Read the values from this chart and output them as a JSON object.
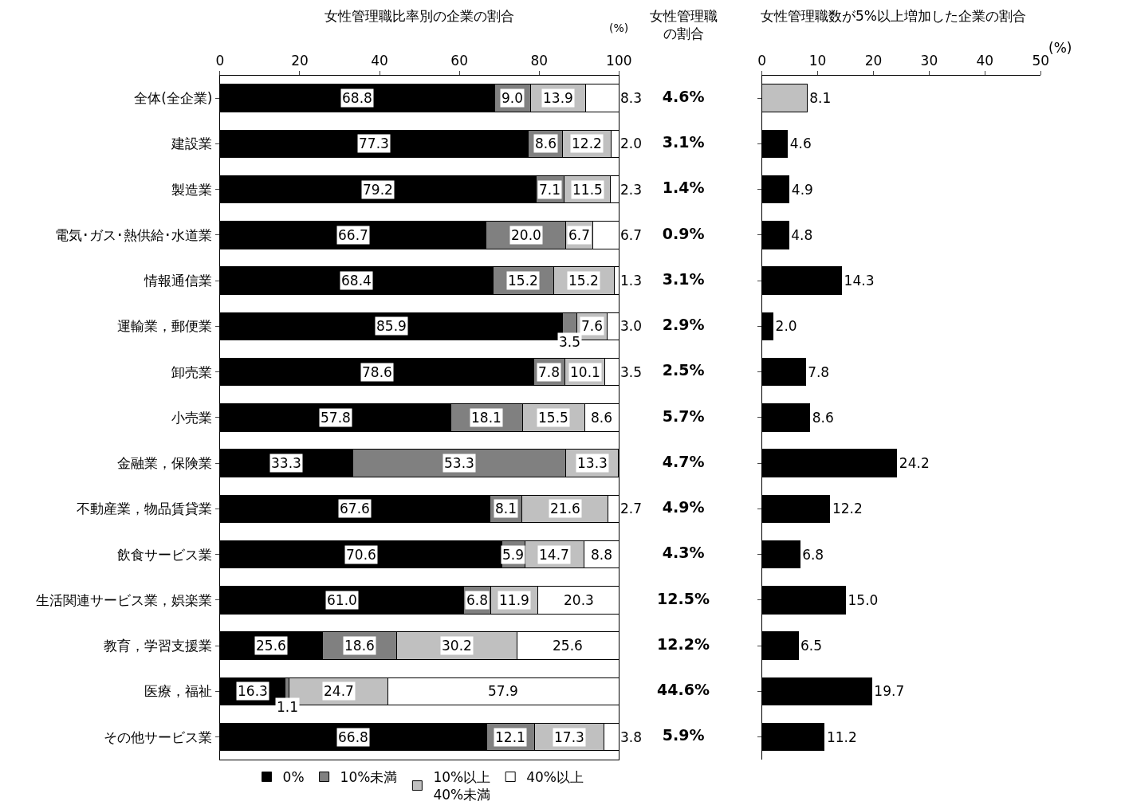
{
  "chart_data": [
    {
      "type": "bar",
      "title": "女性管理職比率別の企業の割合",
      "orientation": "horizontal",
      "stacked": true,
      "xlim": [
        0,
        100
      ],
      "xticks": [
        0,
        20,
        40,
        60,
        80,
        100
      ],
      "xlabel": "(%)",
      "legend": "bottom",
      "categories": [
        "全体(全企業)",
        "建設業",
        "製造業",
        "電気･ガス･熱供給･水道業",
        "情報通信業",
        "運輸業，郵便業",
        "卸売業",
        "小売業",
        "金融業，保険業",
        "不動産業，物品賃貸業",
        "飲食サービス業",
        "生活関連サービス業，娯楽業",
        "教育，学習支援業",
        "医療，福祉",
        "その他サービス業"
      ],
      "series": [
        {
          "name": "0%",
          "color": "#000000",
          "values": [
            68.8,
            77.3,
            79.2,
            66.7,
            68.4,
            85.9,
            78.6,
            57.8,
            33.3,
            67.6,
            70.6,
            61.0,
            25.6,
            16.3,
            66.8
          ],
          "value_labels": [
            "68.8",
            "77.3",
            "79.2",
            "66.7",
            "68.4",
            "85.9",
            "78.6",
            "57.8",
            "33.3",
            "67.6",
            "70.6",
            "61.0",
            "25.6",
            "16.3",
            "66.8"
          ]
        },
        {
          "name": "10%未満",
          "color": "#808080",
          "values": [
            9.0,
            8.6,
            7.1,
            20.0,
            15.2,
            3.5,
            7.8,
            18.1,
            53.3,
            8.1,
            5.9,
            6.8,
            18.6,
            1.1,
            12.1
          ],
          "value_labels": [
            "9.0",
            "8.6",
            "7.1",
            "20.0",
            "15.2",
            "3.5",
            "7.8",
            "18.1",
            "53.3",
            "8.1",
            "5.9",
            "6.8",
            "18.6",
            "1.1",
            "12.1"
          ]
        },
        {
          "name": "10%以上\n40%未満",
          "color": "#c0c0c0",
          "values": [
            13.9,
            12.2,
            11.5,
            6.7,
            15.2,
            7.6,
            10.1,
            15.5,
            13.3,
            21.6,
            14.7,
            11.9,
            30.2,
            24.7,
            17.3
          ],
          "value_labels": [
            "13.9",
            "12.2",
            "11.5",
            "6.7",
            "15.2",
            "7.6",
            "10.1",
            "15.5",
            "13.3",
            "21.6",
            "14.7",
            "11.9",
            "30.2",
            "24.7",
            "17.3"
          ]
        },
        {
          "name": "40%以上",
          "color": "#ffffff",
          "values": [
            8.3,
            2.0,
            2.3,
            6.7,
            1.3,
            3.0,
            3.5,
            8.6,
            0,
            2.7,
            8.8,
            20.3,
            25.6,
            57.9,
            3.8
          ],
          "value_labels": [
            "8.3",
            "2.0",
            "2.3",
            "6.7",
            "1.3",
            "3.0",
            "3.5",
            "8.6",
            null,
            "2.7",
            "8.8",
            "20.3",
            "25.6",
            "57.9",
            "3.8"
          ]
        }
      ]
    },
    {
      "type": "other",
      "title": "女性管理職の割合",
      "value_labels": [
        "4.6%",
        "3.1%",
        "1.4%",
        "0.9%",
        "3.1%",
        "2.9%",
        "2.5%",
        "5.7%",
        "4.7%",
        "4.9%",
        "4.3%",
        "12.5%",
        "12.2%",
        "44.6%",
        "5.9%"
      ]
    },
    {
      "type": "bar",
      "title": "女性管理職数が5%以上増加した企業の割合",
      "orientation": "horizontal",
      "tick_labels": "x",
      "xlim": [
        0,
        50
      ],
      "xticks": [
        0,
        10,
        20,
        30,
        40,
        50
      ],
      "xlabel": "(%)",
      "values": [
        8.1,
        4.6,
        4.9,
        4.8,
        14.3,
        2.0,
        7.8,
        8.6,
        24.2,
        12.2,
        6.8,
        15.0,
        6.5,
        19.7,
        11.2
      ],
      "value_labels": [
        "8.1",
        "4.6",
        "4.9",
        "4.8",
        "14.3",
        "2.0",
        "7.8",
        "8.6",
        "24.2",
        "12.2",
        "6.8",
        "15.0",
        "6.5",
        "19.7",
        "11.2"
      ],
      "colors": [
        "#c0c0c0",
        "#000000",
        "#000000",
        "#000000",
        "#000000",
        "#000000",
        "#000000",
        "#000000",
        "#000000",
        "#000000",
        "#000000",
        "#000000",
        "#000000",
        "#000000",
        "#000000"
      ]
    }
  ]
}
